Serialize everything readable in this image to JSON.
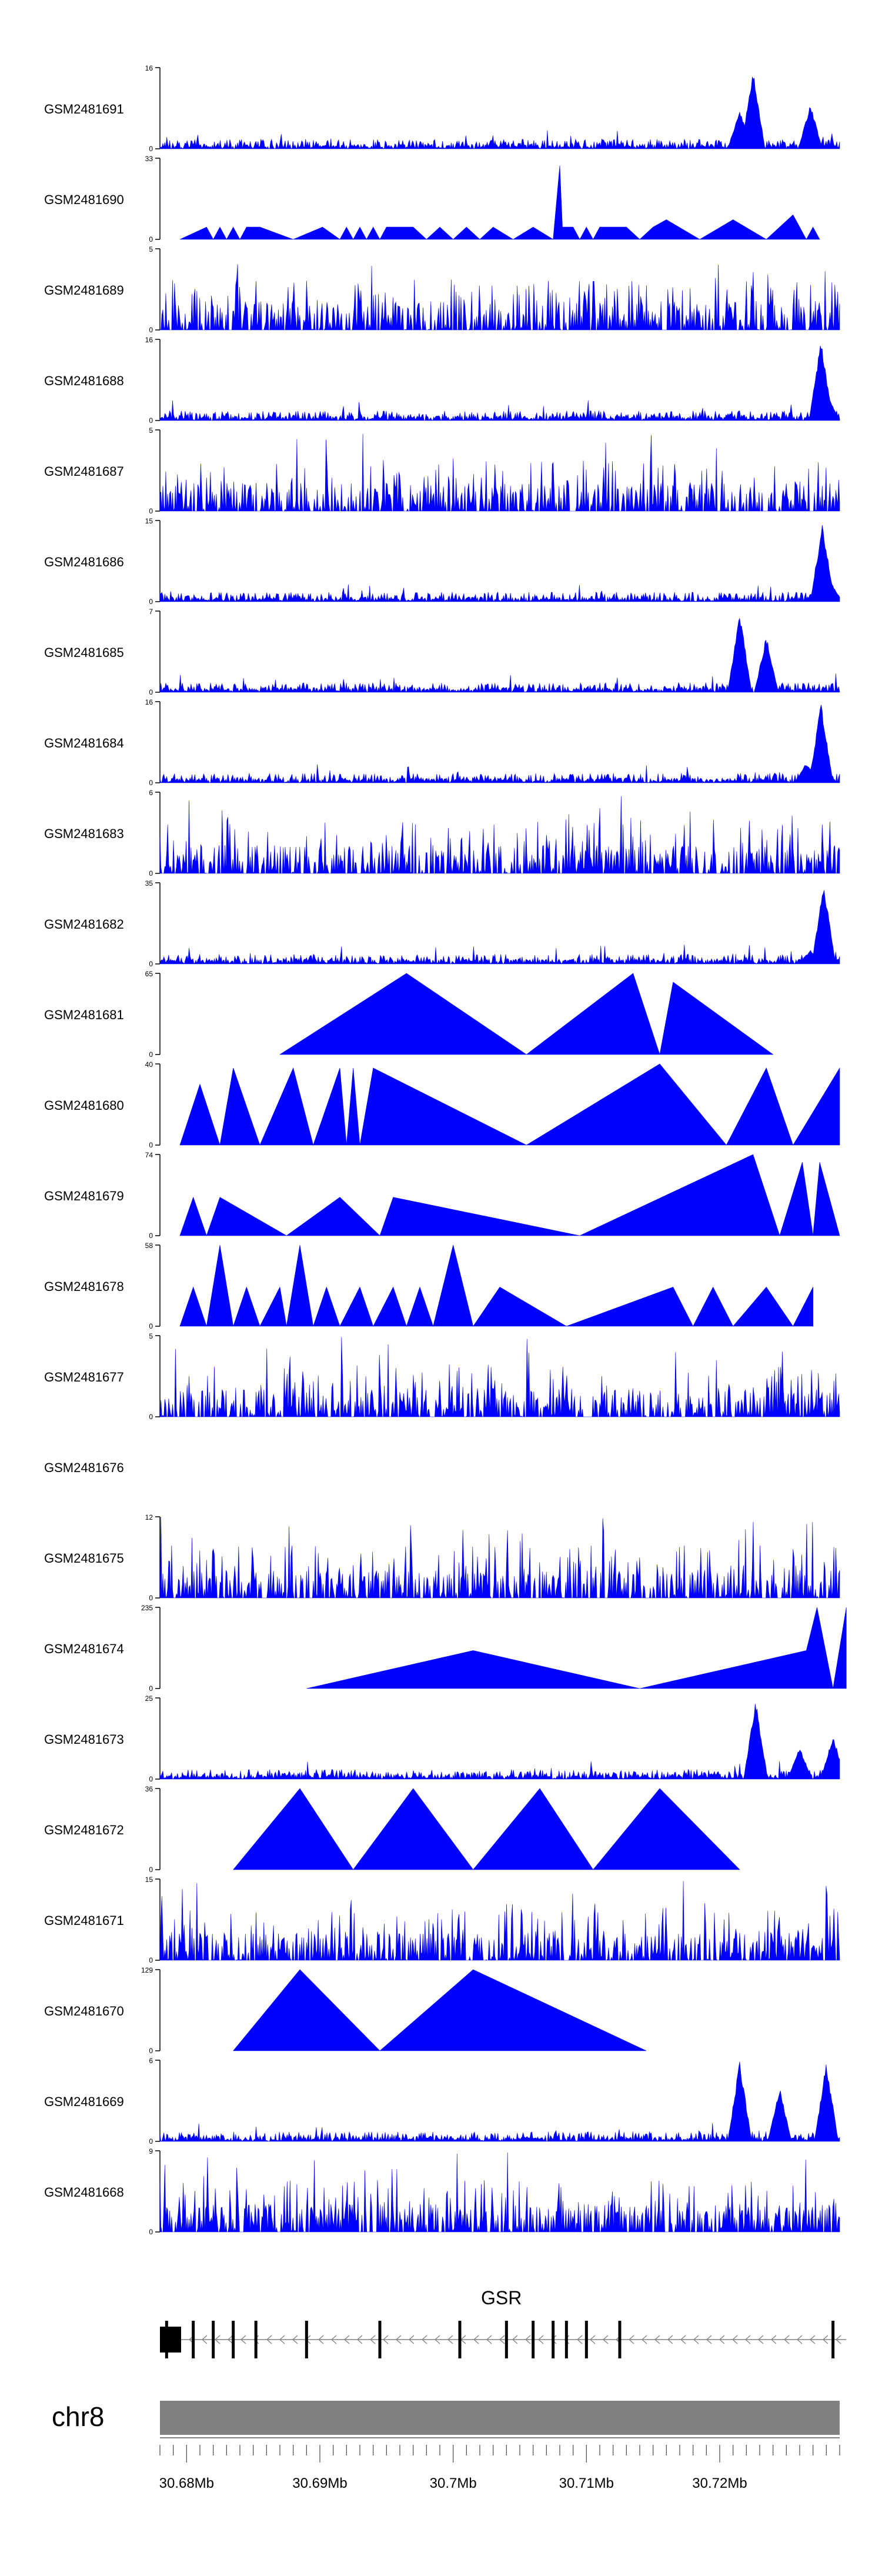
{
  "colors": {
    "track_fill": "#0000ff",
    "axis": "#000000",
    "chromosome_bar": "#808080",
    "gene": "#000000",
    "gene_intron": "#808080"
  },
  "chart_data": {
    "type": "area",
    "title": "",
    "x_range_mb": [
      30.678,
      30.729
    ],
    "tracks": [
      {
        "name": "GSM2481691",
        "ymax": 16,
        "style": "dense",
        "peaks": [
          [
            30.7225,
            16
          ],
          [
            30.7215,
            8
          ],
          [
            30.7268,
            9
          ]
        ]
      },
      {
        "name": "GSM2481690",
        "ymax": 33,
        "style": "triangles",
        "points": [
          [
            30.6795,
            0
          ],
          [
            30.6815,
            5
          ],
          [
            30.682,
            0
          ],
          [
            30.6825,
            5
          ],
          [
            30.683,
            0
          ],
          [
            30.6835,
            5
          ],
          [
            30.684,
            0
          ],
          [
            30.6845,
            5
          ],
          [
            30.6855,
            5
          ],
          [
            30.688,
            0
          ],
          [
            30.6902,
            5
          ],
          [
            30.6915,
            0
          ],
          [
            30.692,
            5
          ],
          [
            30.6925,
            0
          ],
          [
            30.693,
            5
          ],
          [
            30.6935,
            0
          ],
          [
            30.694,
            5
          ],
          [
            30.6945,
            0
          ],
          [
            30.695,
            5
          ],
          [
            30.697,
            5
          ],
          [
            30.698,
            0
          ],
          [
            30.699,
            5
          ],
          [
            30.7,
            0
          ],
          [
            30.701,
            5
          ],
          [
            30.702,
            0
          ],
          [
            30.703,
            5
          ],
          [
            30.7045,
            0
          ],
          [
            30.706,
            5
          ],
          [
            30.7075,
            0
          ],
          [
            30.708,
            30
          ],
          [
            30.7082,
            5
          ],
          [
            30.709,
            5
          ],
          [
            30.7095,
            0
          ],
          [
            30.71,
            5
          ],
          [
            30.7105,
            0
          ],
          [
            30.711,
            5
          ],
          [
            30.713,
            5
          ],
          [
            30.714,
            0
          ],
          [
            30.715,
            5
          ],
          [
            30.716,
            8
          ],
          [
            30.7185,
            0
          ],
          [
            30.721,
            8
          ],
          [
            30.7235,
            0
          ],
          [
            30.7255,
            10
          ],
          [
            30.7265,
            0
          ],
          [
            30.727,
            5
          ],
          [
            30.7275,
            0
          ]
        ]
      },
      {
        "name": "GSM2481689",
        "ymax": 5,
        "style": "sparse_spikes"
      },
      {
        "name": "GSM2481688",
        "ymax": 16,
        "style": "dense",
        "peaks": [
          [
            30.7276,
            16
          ],
          [
            30.7281,
            5
          ]
        ]
      },
      {
        "name": "GSM2481687",
        "ymax": 5,
        "style": "sparse_spikes"
      },
      {
        "name": "GSM2481686",
        "ymax": 15,
        "style": "dense",
        "peaks": [
          [
            30.7277,
            15
          ],
          [
            30.7283,
            4
          ]
        ]
      },
      {
        "name": "GSM2481685",
        "ymax": 7,
        "style": "dense",
        "peaks": [
          [
            30.7215,
            7
          ],
          [
            30.7235,
            5
          ]
        ]
      },
      {
        "name": "GSM2481684",
        "ymax": 16,
        "style": "dense",
        "peaks": [
          [
            30.7276,
            16
          ],
          [
            30.7265,
            4
          ]
        ]
      },
      {
        "name": "GSM2481683",
        "ymax": 6,
        "style": "sparse_spikes"
      },
      {
        "name": "GSM2481682",
        "ymax": 35,
        "style": "dense",
        "peaks": [
          [
            30.7278,
            35
          ],
          [
            30.7268,
            6
          ]
        ]
      },
      {
        "name": "GSM2481681",
        "ymax": 65,
        "style": "triangles",
        "points": [
          [
            30.687,
            0
          ],
          [
            30.6965,
            65
          ],
          [
            30.7055,
            0
          ],
          [
            30.7135,
            65
          ],
          [
            30.7155,
            0
          ],
          [
            30.7165,
            58
          ],
          [
            30.724,
            0
          ]
        ]
      },
      {
        "name": "GSM2481680",
        "ymax": 40,
        "style": "triangles",
        "points": [
          [
            30.6795,
            0
          ],
          [
            30.681,
            30
          ],
          [
            30.6825,
            0
          ],
          [
            30.6835,
            38
          ],
          [
            30.6855,
            0
          ],
          [
            30.688,
            38
          ],
          [
            30.6895,
            0
          ],
          [
            30.6915,
            38
          ],
          [
            30.692,
            0
          ],
          [
            30.6925,
            38
          ],
          [
            30.693,
            0
          ],
          [
            30.694,
            38
          ],
          [
            30.7055,
            0
          ],
          [
            30.7155,
            40
          ],
          [
            30.7205,
            0
          ],
          [
            30.7235,
            38
          ],
          [
            30.7255,
            0
          ],
          [
            30.729,
            38
          ]
        ]
      },
      {
        "name": "GSM2481679",
        "ymax": 74,
        "style": "triangles",
        "points": [
          [
            30.6795,
            0
          ],
          [
            30.6805,
            35
          ],
          [
            30.6815,
            0
          ],
          [
            30.6825,
            35
          ],
          [
            30.6875,
            0
          ],
          [
            30.6915,
            35
          ],
          [
            30.6945,
            0
          ],
          [
            30.6955,
            35
          ],
          [
            30.7095,
            0
          ],
          [
            30.7225,
            74
          ],
          [
            30.7245,
            0
          ],
          [
            30.7262,
            67
          ],
          [
            30.727,
            0
          ],
          [
            30.7275,
            67
          ],
          [
            30.729,
            0
          ]
        ]
      },
      {
        "name": "GSM2481678",
        "ymax": 58,
        "style": "triangles",
        "points": [
          [
            30.6795,
            0
          ],
          [
            30.6805,
            28
          ],
          [
            30.6815,
            0
          ],
          [
            30.6825,
            58
          ],
          [
            30.6835,
            0
          ],
          [
            30.6845,
            28
          ],
          [
            30.6855,
            0
          ],
          [
            30.687,
            28
          ],
          [
            30.6875,
            0
          ],
          [
            30.6885,
            58
          ],
          [
            30.6895,
            0
          ],
          [
            30.6905,
            28
          ],
          [
            30.6915,
            0
          ],
          [
            30.693,
            28
          ],
          [
            30.694,
            0
          ],
          [
            30.6955,
            28
          ],
          [
            30.6965,
            0
          ],
          [
            30.6975,
            28
          ],
          [
            30.6985,
            0
          ],
          [
            30.7,
            58
          ],
          [
            30.7015,
            0
          ],
          [
            30.7035,
            28
          ],
          [
            30.7085,
            0
          ],
          [
            30.7165,
            28
          ],
          [
            30.718,
            0
          ],
          [
            30.7195,
            28
          ],
          [
            30.721,
            0
          ],
          [
            30.7235,
            28
          ],
          [
            30.7255,
            0
          ],
          [
            30.727,
            28
          ]
        ]
      },
      {
        "name": "GSM2481677",
        "ymax": 5,
        "style": "sparse_spikes"
      },
      {
        "name": "GSM2481676",
        "ymax": null,
        "style": "empty"
      },
      {
        "name": "GSM2481675",
        "ymax": 12,
        "style": "sparse_spikes"
      },
      {
        "name": "GSM2481674",
        "ymax": 235,
        "style": "triangles",
        "points": [
          [
            30.689,
            0
          ],
          [
            30.7015,
            110
          ],
          [
            30.714,
            0
          ],
          [
            30.7265,
            110
          ],
          [
            30.7273,
            235
          ],
          [
            30.7285,
            0
          ],
          [
            30.7295,
            235
          ]
        ]
      },
      {
        "name": "GSM2481673",
        "ymax": 25,
        "style": "dense",
        "peaks": [
          [
            30.7227,
            25
          ],
          [
            30.726,
            10
          ],
          [
            30.7285,
            14
          ]
        ]
      },
      {
        "name": "GSM2481672",
        "ymax": 36,
        "style": "triangles",
        "points": [
          [
            30.6835,
            0
          ],
          [
            30.6885,
            36
          ],
          [
            30.6925,
            0
          ],
          [
            30.697,
            36
          ],
          [
            30.7015,
            0
          ],
          [
            30.7065,
            36
          ],
          [
            30.7105,
            0
          ],
          [
            30.7155,
            36
          ],
          [
            30.7215,
            0
          ]
        ]
      },
      {
        "name": "GSM2481671",
        "ymax": 15,
        "style": "sparse_spikes"
      },
      {
        "name": "GSM2481670",
        "ymax": 129,
        "style": "triangles",
        "points": [
          [
            30.6835,
            0
          ],
          [
            30.6885,
            129
          ],
          [
            30.6945,
            0
          ],
          [
            30.7015,
            129
          ],
          [
            30.7145,
            0
          ]
        ]
      },
      {
        "name": "GSM2481669",
        "ymax": 6,
        "style": "dense",
        "peaks": [
          [
            30.7215,
            6
          ],
          [
            30.7245,
            4
          ],
          [
            30.728,
            6
          ]
        ]
      },
      {
        "name": "GSM2481668",
        "ymax": 9,
        "style": "sparse_spikes"
      }
    ],
    "gene": {
      "name": "GSR",
      "start_mb": 30.678,
      "end_mb": 30.7295,
      "strand": "-",
      "exons_mb": [
        30.6785,
        30.6805,
        30.682,
        30.6835,
        30.6852,
        30.689,
        30.6945,
        30.7005,
        30.704,
        30.706,
        30.7075,
        30.7085,
        30.71,
        30.7125,
        30.7285
      ]
    },
    "chromosome": {
      "label": "chr8"
    },
    "x_axis": {
      "ticks_mb": [
        30.678,
        30.679,
        30.68,
        30.681,
        30.682,
        30.683,
        30.684,
        30.685,
        30.686,
        30.687,
        30.688,
        30.689,
        30.69,
        30.691,
        30.692,
        30.693,
        30.694,
        30.695,
        30.696,
        30.697,
        30.698,
        30.699,
        30.7,
        30.701,
        30.702,
        30.703,
        30.704,
        30.705,
        30.706,
        30.707,
        30.708,
        30.709,
        30.71,
        30.711,
        30.712,
        30.713,
        30.714,
        30.715,
        30.716,
        30.717,
        30.718,
        30.719,
        30.72,
        30.721,
        30.722,
        30.723,
        30.724,
        30.725,
        30.726,
        30.727,
        30.728,
        30.729
      ],
      "labeled_ticks": [
        {
          "value": 30.68,
          "label": "30.68Mb"
        },
        {
          "value": 30.69,
          "label": "30.69Mb"
        },
        {
          "value": 30.7,
          "label": "30.7Mb"
        },
        {
          "value": 30.71,
          "label": "30.71Mb"
        },
        {
          "value": 30.72,
          "label": "30.72Mb"
        }
      ]
    }
  }
}
